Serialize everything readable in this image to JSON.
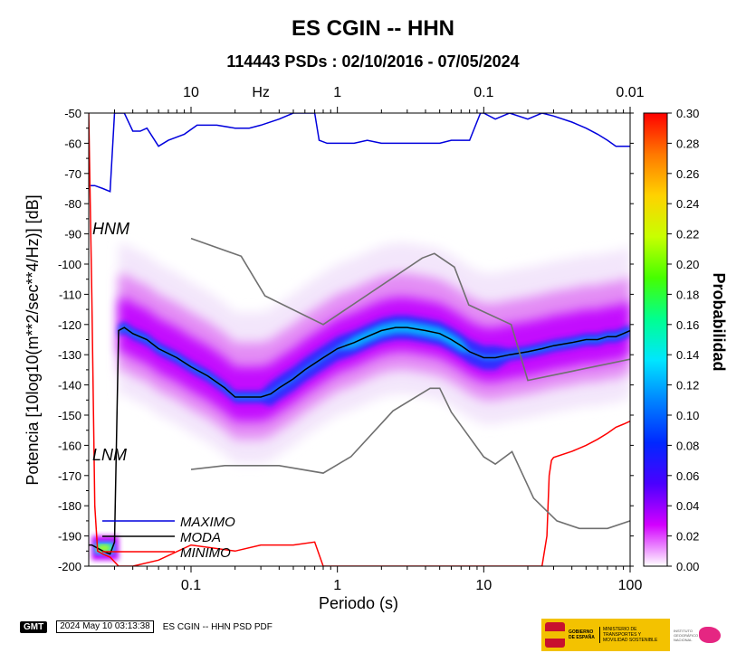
{
  "header": {
    "title": "ES CGIN -- HHN",
    "subtitle": "114443 PSDs : 02/10/2016 - 07/05/2024"
  },
  "footer": {
    "logo_text": "GMT",
    "timestamp": "2024 May 10 03:13:38",
    "caption": "ES CGIN -- HHN PSD PDF"
  },
  "institution": {
    "gov_line": "GOBIERNO DE ESPAÑA",
    "ministry": "MINISTERIO DE TRANSPORTES Y MOVILIDAD SOSTENIBLE",
    "institute": "INSTITUTO GEOGRÁFICO NACIONAL"
  },
  "chart_data": {
    "type": "heatmap",
    "xlabel": "Periodo (s)",
    "ylabel": "Potencia [10log10(m**2/sec**4/Hz)] [dB]",
    "x_scale": "log",
    "xlim": [
      0.02,
      100
    ],
    "ylim": [
      -200,
      -50
    ],
    "x_ticks": [
      0.1,
      1,
      10,
      100
    ],
    "x_tick_labels": [
      "0.1",
      "1",
      "10",
      "100"
    ],
    "y_ticks": [
      -200,
      -190,
      -180,
      -170,
      -160,
      -150,
      -140,
      -130,
      -120,
      -110,
      -100,
      -90,
      -80,
      -70,
      -60,
      -50
    ],
    "y_tick_labels": [
      "-200",
      "-190",
      "-180",
      "-170",
      "-160",
      "-150",
      "-140",
      "-130",
      "-120",
      "-110",
      "-100",
      "-90",
      "-80",
      "-70",
      "-60",
      "-50"
    ],
    "top_axis": {
      "label": "Hz",
      "ticks": [
        10,
        1,
        0.1,
        0.01
      ],
      "tick_labels": [
        "10",
        "1",
        "0.1",
        "0.01"
      ]
    },
    "colorbar": {
      "label": "Probabilidad",
      "range": [
        0,
        0.3
      ],
      "ticks": [
        0,
        0.02,
        0.04,
        0.06,
        0.08,
        0.1,
        0.12,
        0.14,
        0.16,
        0.18,
        0.2,
        0.22,
        0.24,
        0.26,
        0.28,
        0.3
      ],
      "tick_labels": [
        "0.00",
        "0.02",
        "0.04",
        "0.06",
        "0.08",
        "0.10",
        "0.12",
        "0.14",
        "0.16",
        "0.18",
        "0.20",
        "0.22",
        "0.24",
        "0.26",
        "0.28",
        "0.30"
      ],
      "colors": [
        "#ffffff",
        "#d300ff",
        "#4a00ff",
        "#0028ff",
        "#0082ff",
        "#00e6ff",
        "#00ff90",
        "#46ff00",
        "#c8ff00",
        "#ffd200",
        "#ff7800",
        "#ff0000"
      ]
    },
    "model_labels": {
      "hnm": "HNM",
      "lnm": "LNM"
    },
    "legend": {
      "placement": "bottom-left",
      "entries": [
        {
          "name": "MAXIMO",
          "color": "#0000dd"
        },
        {
          "name": "MODA",
          "color": "#000000"
        },
        {
          "name": "MINIMO",
          "color": "#ff0000"
        }
      ]
    },
    "series": [
      {
        "name": "MAXIMO",
        "color": "#0000dd",
        "x": [
          0.02,
          0.022,
          0.025,
          0.028,
          0.03,
          0.032,
          0.035,
          0.04,
          0.045,
          0.05,
          0.06,
          0.07,
          0.09,
          0.11,
          0.15,
          0.2,
          0.25,
          0.3,
          0.4,
          0.5,
          0.6,
          0.7,
          0.75,
          0.85,
          1.0,
          1.3,
          1.6,
          2.0,
          2.5,
          3.0,
          4.0,
          5.0,
          6.0,
          8.0,
          9.5,
          10,
          12,
          15,
          20,
          25,
          30,
          40,
          50,
          60,
          70,
          80,
          100
        ],
        "y": [
          -74,
          -74,
          -75,
          -76,
          -50,
          -50,
          -50,
          -56,
          -56,
          -55,
          -61,
          -59,
          -57,
          -54,
          -54,
          -55,
          -55,
          -54,
          -52,
          -50,
          -50,
          -50,
          -59,
          -60,
          -60,
          -60,
          -59,
          -60,
          -60,
          -60,
          -60,
          -60,
          -59,
          -59,
          -50,
          -50,
          -52,
          -50,
          -52,
          -50,
          -51,
          -53,
          -55,
          -57,
          -59,
          -61,
          -61
        ]
      },
      {
        "name": "MODA",
        "color": "#000000",
        "x": [
          0.02,
          0.021,
          0.025,
          0.028,
          0.03,
          0.032,
          0.035,
          0.04,
          0.05,
          0.06,
          0.08,
          0.1,
          0.13,
          0.17,
          0.2,
          0.25,
          0.3,
          0.35,
          0.4,
          0.5,
          0.6,
          0.8,
          1.0,
          1.3,
          1.6,
          2.0,
          2.5,
          3.0,
          4.0,
          5.0,
          6.0,
          7.0,
          8.0,
          10,
          12,
          15,
          20,
          25,
          30,
          40,
          50,
          60,
          70,
          80,
          90,
          100
        ],
        "y": [
          -193,
          -193,
          -195,
          -196,
          -192,
          -122,
          -121,
          -123,
          -125,
          -128,
          -131,
          -134,
          -137,
          -141,
          -144,
          -144,
          -144,
          -143,
          -141,
          -138,
          -135,
          -131,
          -128,
          -126,
          -124,
          -122,
          -121,
          -121,
          -122,
          -123,
          -125,
          -127,
          -129,
          -131,
          -131,
          -130,
          -129,
          -128,
          -127,
          -126,
          -125,
          -125,
          -124,
          -124,
          -123,
          -122
        ]
      },
      {
        "name": "MINIMO",
        "color": "#ff0000",
        "x": [
          0.02,
          0.021,
          0.022,
          0.023,
          0.025,
          0.028,
          0.032,
          0.04,
          0.06,
          0.1,
          0.2,
          0.3,
          0.5,
          0.7,
          0.8,
          0.9,
          1.0,
          1.5,
          2.0,
          3.0,
          4.0,
          5.0,
          7.0,
          10,
          15,
          20,
          25,
          27,
          28,
          29,
          30,
          40,
          50,
          60,
          70,
          80,
          90,
          100
        ],
        "y": [
          -50,
          -110,
          -180,
          -195,
          -196,
          -197,
          -200,
          -200,
          -198,
          -193,
          -195,
          -193,
          -193,
          -192,
          -200,
          -200,
          -200,
          -200,
          -200,
          -200,
          -200,
          -200,
          -200,
          -200,
          -200,
          -200,
          -200,
          -190,
          -170,
          -165,
          -164,
          -162,
          -160,
          -158,
          -156,
          -154,
          -153,
          -152
        ]
      },
      {
        "name": "HNM",
        "color": "#707070",
        "x": [
          0.1,
          0.22,
          0.32,
          0.8,
          3.8,
          4.6,
          6.3,
          7.9,
          15.4,
          20,
          100
        ],
        "y": [
          -91.5,
          -97.4,
          -110.5,
          -120,
          -98,
          -96.5,
          -101,
          -113.5,
          -120,
          -138.5,
          -131.5
        ]
      },
      {
        "name": "LNM",
        "color": "#707070",
        "x": [
          0.1,
          0.17,
          0.4,
          0.8,
          1.24,
          2.4,
          4.3,
          5.0,
          6.0,
          10,
          12,
          15.6,
          21.9,
          31.6,
          45,
          70,
          100
        ],
        "y": [
          -168,
          -166.7,
          -166.7,
          -169.2,
          -163.7,
          -148.6,
          -141.1,
          -141.1,
          -149,
          -163.8,
          -166.2,
          -162.1,
          -177.5,
          -185,
          -187.5,
          -187.5,
          -185
        ]
      }
    ]
  }
}
